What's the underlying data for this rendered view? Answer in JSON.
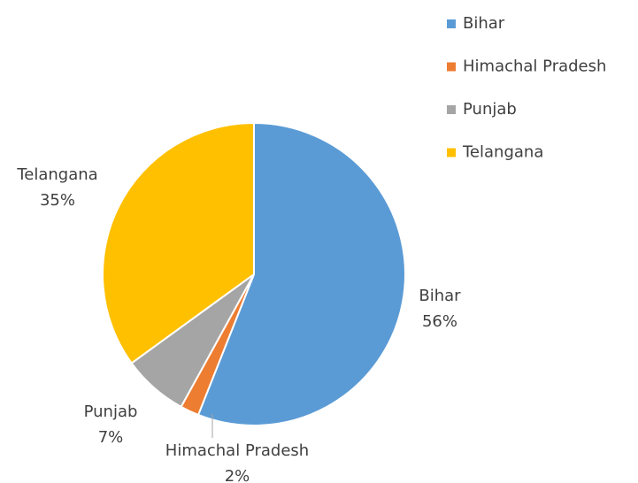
{
  "chart_data": {
    "type": "pie",
    "categories": [
      "Bihar",
      "Himachal Pradesh",
      "Punjab",
      "Telangana"
    ],
    "values": [
      56,
      2,
      7,
      35
    ],
    "value_labels": [
      "56%",
      "2%",
      "7%",
      "35%"
    ],
    "colors": [
      "#5b9bd5",
      "#ed7d31",
      "#a5a5a5",
      "#ffc000"
    ],
    "legend": "top-right"
  }
}
